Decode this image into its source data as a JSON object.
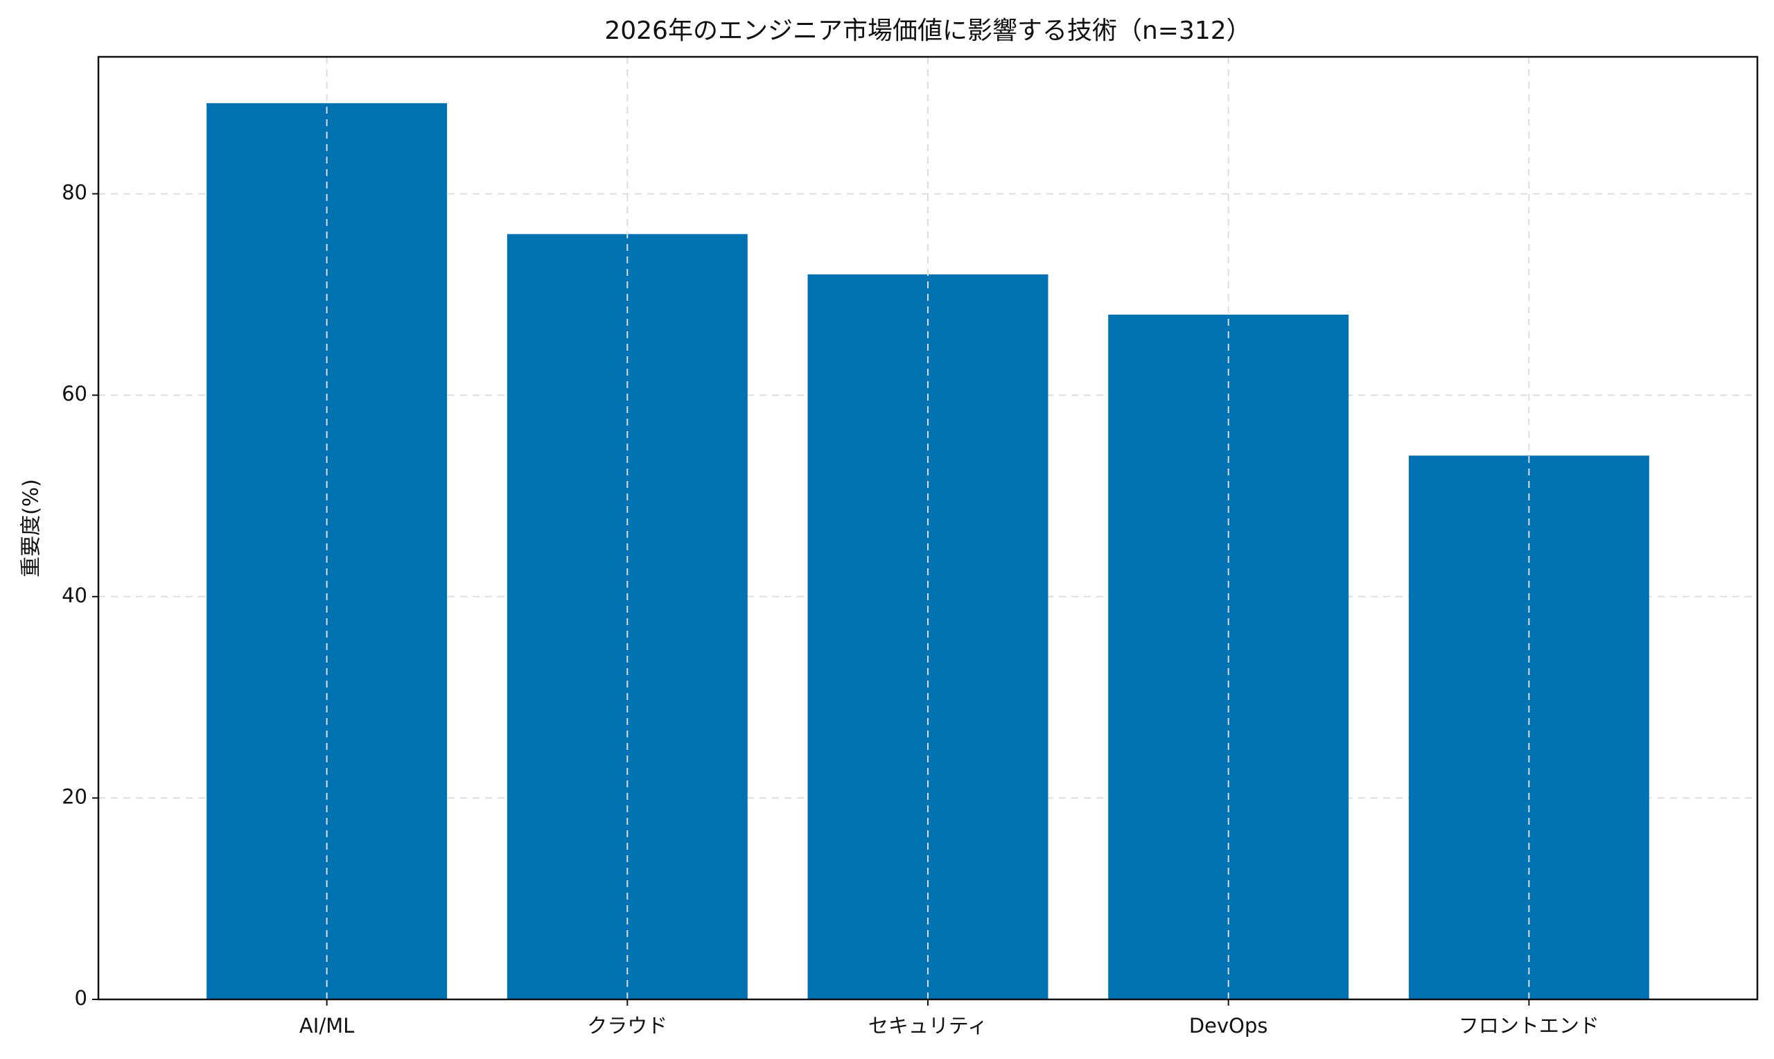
{
  "chart_data": {
    "type": "bar",
    "title": "2026年のエンジニア市場価値に影響する技術（n=312）",
    "y_label": "重要度(%)",
    "categories": [
      "AI/ML",
      "クラウド",
      "セキュリティ",
      "DevOps",
      "フロントエンド"
    ],
    "values": [
      89,
      76,
      72,
      68,
      54
    ],
    "color": "#0072b2",
    "ylim": [
      0,
      93.6
    ],
    "yticks": [
      0,
      20,
      40,
      60,
      80
    ],
    "grid": true
  }
}
